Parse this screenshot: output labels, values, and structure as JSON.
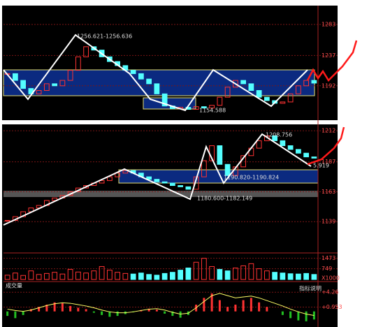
{
  "chart_data": [
    {
      "type": "candlestick",
      "values": [
        1210,
        1200,
        1188,
        1180,
        1185,
        1195,
        1192,
        1200,
        1215,
        1235,
        1250,
        1245,
        1235,
        1228,
        1222,
        1215,
        1210,
        1202,
        1195,
        1180,
        1162,
        1158,
        1160,
        1157,
        1161,
        1159,
        1163,
        1175,
        1190,
        1200,
        1195,
        1185,
        1175,
        1170,
        1166,
        1168,
        1180,
        1192,
        1200,
        1196
      ],
      "ylim": [
        1143,
        1309
      ],
      "yticks": [
        1192,
        1237,
        1283
      ],
      "up_color": "#ff3232",
      "down_color": "#54ffff",
      "annotations": [
        "1256.621-1256.636",
        "1154.588"
      ]
    },
    {
      "type": "candlestick",
      "values": [
        1140,
        1143,
        1147,
        1150,
        1152,
        1156,
        1158,
        1160,
        1163,
        1166,
        1168,
        1170,
        1172,
        1175,
        1178,
        1180,
        1178,
        1175,
        1173,
        1171,
        1170,
        1168,
        1167,
        1165,
        1175,
        1188,
        1200,
        1185,
        1176,
        1183,
        1192,
        1198,
        1204,
        1208,
        1204,
        1200,
        1197,
        1194,
        1191,
        1190
      ],
      "ylim": [
        1115,
        1216
      ],
      "yticks": [
        1139,
        1163,
        1187,
        1212
      ],
      "up_color": "#ff3232",
      "down_color": "#54ffff",
      "annotations": [
        "1208.756",
        "1190.820-1190.824",
        "1180.600-1182.149",
        "5.919"
      ]
    },
    {
      "type": "volume",
      "values": [
        300,
        450,
        280,
        600,
        350,
        420,
        500,
        380,
        700,
        520,
        450,
        600,
        900,
        650,
        500,
        420,
        380,
        450,
        350,
        300,
        420,
        500,
        650,
        800,
        1200,
        1473,
        900,
        700,
        600,
        800,
        950,
        1100,
        750,
        600,
        500,
        450,
        400,
        380,
        420,
        350
      ],
      "ylim": [
        0,
        1700
      ],
      "yticks": [
        749,
        1473
      ],
      "unit": "X1000",
      "up_color": "#ff3232",
      "down_color": "#54ffff"
    },
    {
      "type": "indicator",
      "title": "成交量",
      "note": "指标说明",
      "values": [
        -1,
        -1.5,
        -0.8,
        0.5,
        1,
        1.5,
        2,
        1.8,
        1.2,
        0.8,
        0.5,
        -0.3,
        -0.8,
        -1.2,
        -1,
        -0.6,
        -0.2,
        0.3,
        0.6,
        0.4,
        -0.5,
        -1,
        -1.4,
        -0.8,
        1.5,
        3,
        4,
        2.5,
        1,
        1.5,
        2.5,
        3,
        2,
        1,
        0,
        -0.8,
        -1.5,
        -2,
        -2.2,
        -1.8
      ],
      "line": [
        0.5,
        0.2,
        0,
        0.3,
        0.8,
        1.3,
        1.7,
        1.9,
        1.8,
        1.5,
        1.2,
        0.8,
        0.3,
        -0.1,
        -0.3,
        -0.3,
        -0.1,
        0.2,
        0.5,
        0.6,
        0.3,
        -0.2,
        -0.6,
        -0.4,
        0.8,
        2.2,
        3.5,
        4,
        3.5,
        3,
        3.2,
        3.4,
        3,
        2.4,
        1.8,
        1.2,
        0.5,
        -0.1,
        -0.6,
        -0.9
      ],
      "line_color": "#ffff66",
      "ylim": [
        -3,
        6
      ],
      "yticks": [
        {
          "value": 0.953,
          "label": "+0.953"
        },
        {
          "value": 4.26,
          "label": "+4.26"
        }
      ],
      "up_color": "#ff3232",
      "down_color": "#22c022"
    }
  ]
}
